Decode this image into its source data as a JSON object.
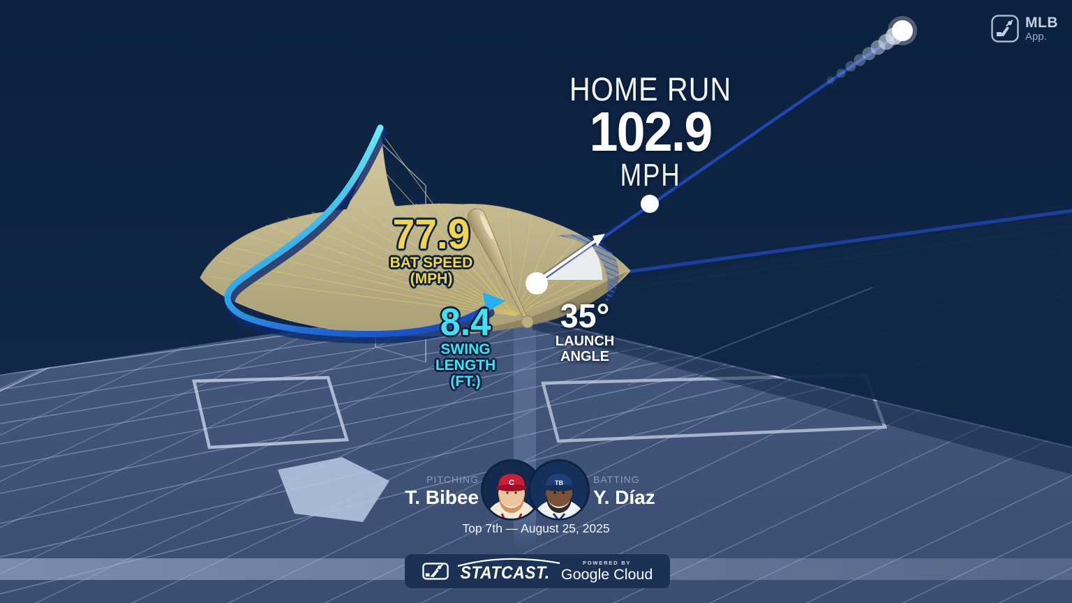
{
  "app_badge": {
    "brand": "MLB",
    "app": "App."
  },
  "result": {
    "event": "HOME RUN",
    "exit_velocity": "102.9",
    "exit_velocity_unit": "MPH"
  },
  "metrics": {
    "bat_speed": {
      "value": "77.9",
      "label_line1": "BAT SPEED",
      "label_line2": "(MPH)"
    },
    "swing_length": {
      "value": "8.4",
      "label_line1": "SWING",
      "label_line2": "LENGTH",
      "label_line3": "(FT.)"
    },
    "launch_angle": {
      "value": "35°",
      "label_line1": "LAUNCH",
      "label_line2": "ANGLE"
    }
  },
  "matchup": {
    "pitcher": {
      "role_label": "PITCHING",
      "name": "T. Bibee",
      "cap_initials": "C"
    },
    "batter": {
      "role_label": "BATTING",
      "name": "Y. Díaz",
      "cap_initials": "TB"
    }
  },
  "game_info": {
    "situation": "Top 7th — August 25, 2025"
  },
  "footer": {
    "statcast_wordmark": "STATCAST.",
    "powered_by_label": "POWERED BY",
    "cloud_brand": "Google Cloud"
  },
  "colors": {
    "sky_navy": "#0e2342",
    "ground_slate": "#42547c",
    "accent_yellow": "#f3d44d",
    "accent_cyan": "#3ce3f2",
    "trajectory_blue": "#1e47b0",
    "swing_surface_tan": "#c9bd92"
  }
}
